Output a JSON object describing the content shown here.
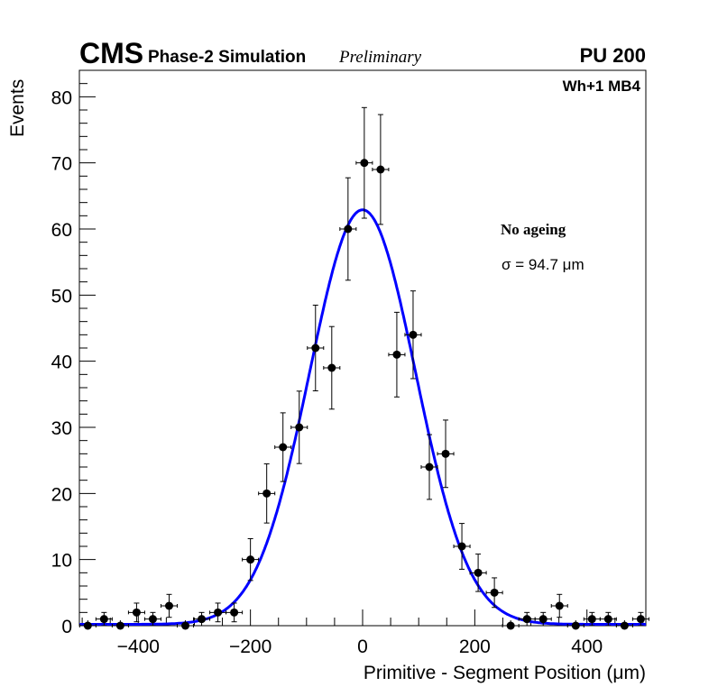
{
  "chart_data": {
    "type": "scatter",
    "experiment": "CMS",
    "subtitle": "Phase-2 Simulation",
    "status": "Preliminary",
    "pileup": "PU 200",
    "station": "Wh+1 MB4",
    "legend_title": "No ageing",
    "fit_label": "σ = 94.7 μm",
    "xlabel": "Primitive - Segment Position (μm)",
    "ylabel": "Events",
    "xlim": [
      -505,
      505
    ],
    "ylim": [
      0,
      84
    ],
    "xticks": [
      -400,
      -200,
      0,
      200,
      400
    ],
    "xtick_labels": [
      "−400",
      "−200",
      "0",
      "200",
      "400"
    ],
    "yticks": [
      0,
      10,
      20,
      30,
      40,
      50,
      60,
      70,
      80
    ],
    "ytick_labels": [
      "0",
      "10",
      "20",
      "30",
      "40",
      "50",
      "60",
      "70",
      "80"
    ],
    "bin_width": 29,
    "x": [
      -490,
      -461,
      -432,
      -403,
      -374,
      -345,
      -316,
      -287,
      -258,
      -229,
      -200,
      -171,
      -142,
      -113,
      -84,
      -55,
      -26,
      3,
      32,
      61,
      90,
      119,
      148,
      177,
      206,
      235,
      264,
      293,
      322,
      351,
      380,
      409,
      438,
      467,
      496
    ],
    "values": [
      0,
      1,
      0,
      2,
      1,
      3,
      0,
      1,
      2,
      2,
      10,
      20,
      27,
      30,
      42,
      39,
      60,
      70,
      69,
      41,
      44,
      24,
      26,
      12,
      8,
      5,
      0,
      1,
      1,
      3,
      0,
      1,
      1,
      0,
      1
    ],
    "fit": {
      "type": "gaussian",
      "amplitude": 62.7,
      "mean": 0,
      "sigma": 94.7,
      "constant": 0.2,
      "color": "#0000ff"
    }
  }
}
